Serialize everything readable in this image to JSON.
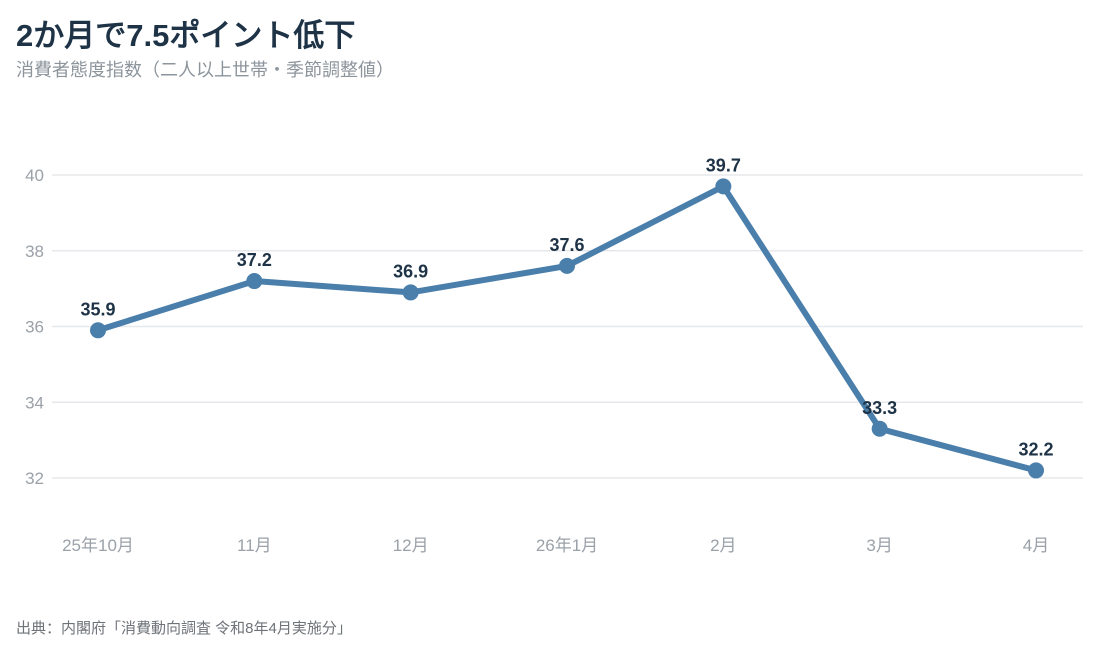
{
  "title": "2か月で7.5ポイント低下",
  "subtitle": "消費者態度指数（二人以上世帯・季節調整値）",
  "source": "出典：内閣府「消費動向調査 令和8年4月実施分」",
  "colors": {
    "line": "#4a7eab",
    "title": "#1f3347",
    "grid": "#e6e8eb",
    "axis_text": "#9aa1a8"
  },
  "chart_data": {
    "type": "line",
    "title": "2か月で7.5ポイント低下",
    "subtitle": "消費者態度指数（二人以上世帯・季節調整値）",
    "categories": [
      "25年10月",
      "11月",
      "12月",
      "26年1月",
      "2月",
      "3月",
      "4月"
    ],
    "series": [
      {
        "values": [
          35.9,
          37.2,
          36.9,
          37.6,
          39.7,
          33.3,
          32.2
        ]
      }
    ],
    "data_labels": [
      "35.9",
      "37.2",
      "36.9",
      "37.6",
      "39.7",
      "33.3",
      "32.2"
    ],
    "yticks": [
      32,
      34,
      36,
      38,
      40
    ],
    "ylim": [
      31.3,
      40.2
    ],
    "grid": true,
    "legend": "none",
    "markers": true
  }
}
